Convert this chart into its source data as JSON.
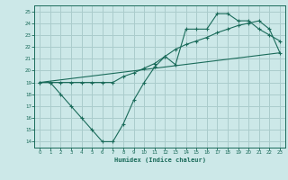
{
  "xlabel": "Humidex (Indice chaleur)",
  "bg_color": "#cce8e8",
  "grid_color": "#aacccc",
  "line_color": "#1a6b5a",
  "xlim": [
    -0.5,
    23.5
  ],
  "ylim": [
    13.5,
    25.5
  ],
  "xticks": [
    0,
    1,
    2,
    3,
    4,
    5,
    6,
    7,
    8,
    9,
    10,
    11,
    12,
    13,
    14,
    15,
    16,
    17,
    18,
    19,
    20,
    21,
    22,
    23
  ],
  "yticks": [
    14,
    15,
    16,
    17,
    18,
    19,
    20,
    21,
    22,
    23,
    24,
    25
  ],
  "line1_x": [
    0,
    1,
    2,
    3,
    4,
    5,
    6,
    7,
    8,
    9,
    10,
    11,
    12,
    13,
    14,
    15,
    16,
    17,
    18,
    19,
    20,
    21,
    22,
    23
  ],
  "line1_y": [
    19,
    19,
    18,
    17,
    16,
    15,
    14,
    14,
    15.5,
    17.5,
    19,
    20.3,
    21.2,
    20.5,
    23.5,
    23.5,
    23.5,
    24.8,
    24.8,
    24.2,
    24.2,
    23.5,
    23.0,
    22.5
  ],
  "line2_x": [
    0,
    1,
    2,
    3,
    4,
    5,
    6,
    7,
    8,
    9,
    10,
    11,
    12,
    13,
    14,
    15,
    16,
    17,
    18,
    19,
    20,
    21,
    22,
    23
  ],
  "line2_y": [
    19,
    19,
    19,
    19,
    19,
    19,
    19,
    19,
    19.5,
    19.8,
    20.2,
    20.6,
    21.2,
    21.8,
    22.2,
    22.5,
    22.8,
    23.2,
    23.5,
    23.8,
    24.0,
    24.2,
    23.5,
    21.5
  ],
  "line3_x": [
    0,
    23
  ],
  "line3_y": [
    19.0,
    21.5
  ]
}
